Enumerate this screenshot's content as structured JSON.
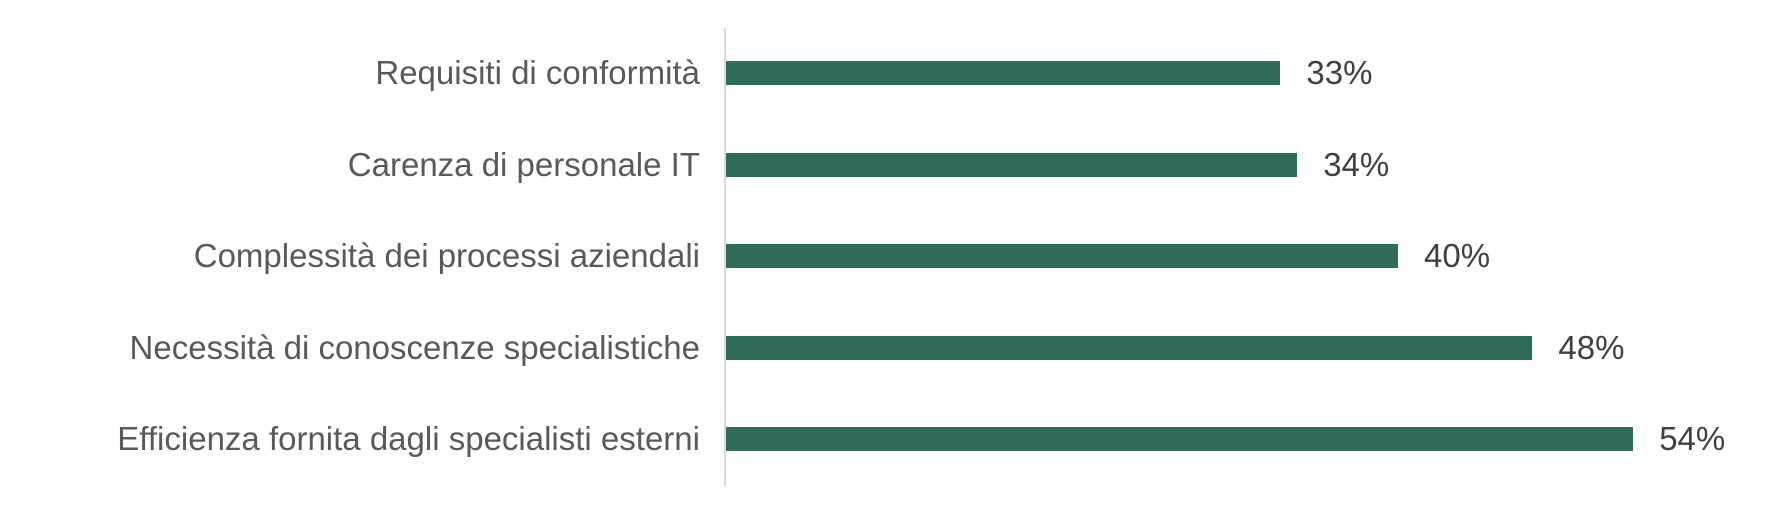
{
  "chart_data": {
    "type": "bar",
    "orientation": "horizontal",
    "categories": [
      "Requisiti di conformità",
      "Carenza di personale IT",
      "Complessità dei processi aziendali",
      "Necessità di conoscenze specialistiche",
      "Efficienza fornita dagli specialisti esterni"
    ],
    "values": [
      33,
      34,
      40,
      48,
      54
    ],
    "value_labels": [
      "33%",
      "34%",
      "40%",
      "48%",
      "54%"
    ],
    "unit": "%",
    "xlim": [
      0,
      60
    ],
    "grid": false,
    "legend": "none",
    "bar_color": "#2f6b5a",
    "title": "",
    "xlabel": "",
    "ylabel": ""
  }
}
